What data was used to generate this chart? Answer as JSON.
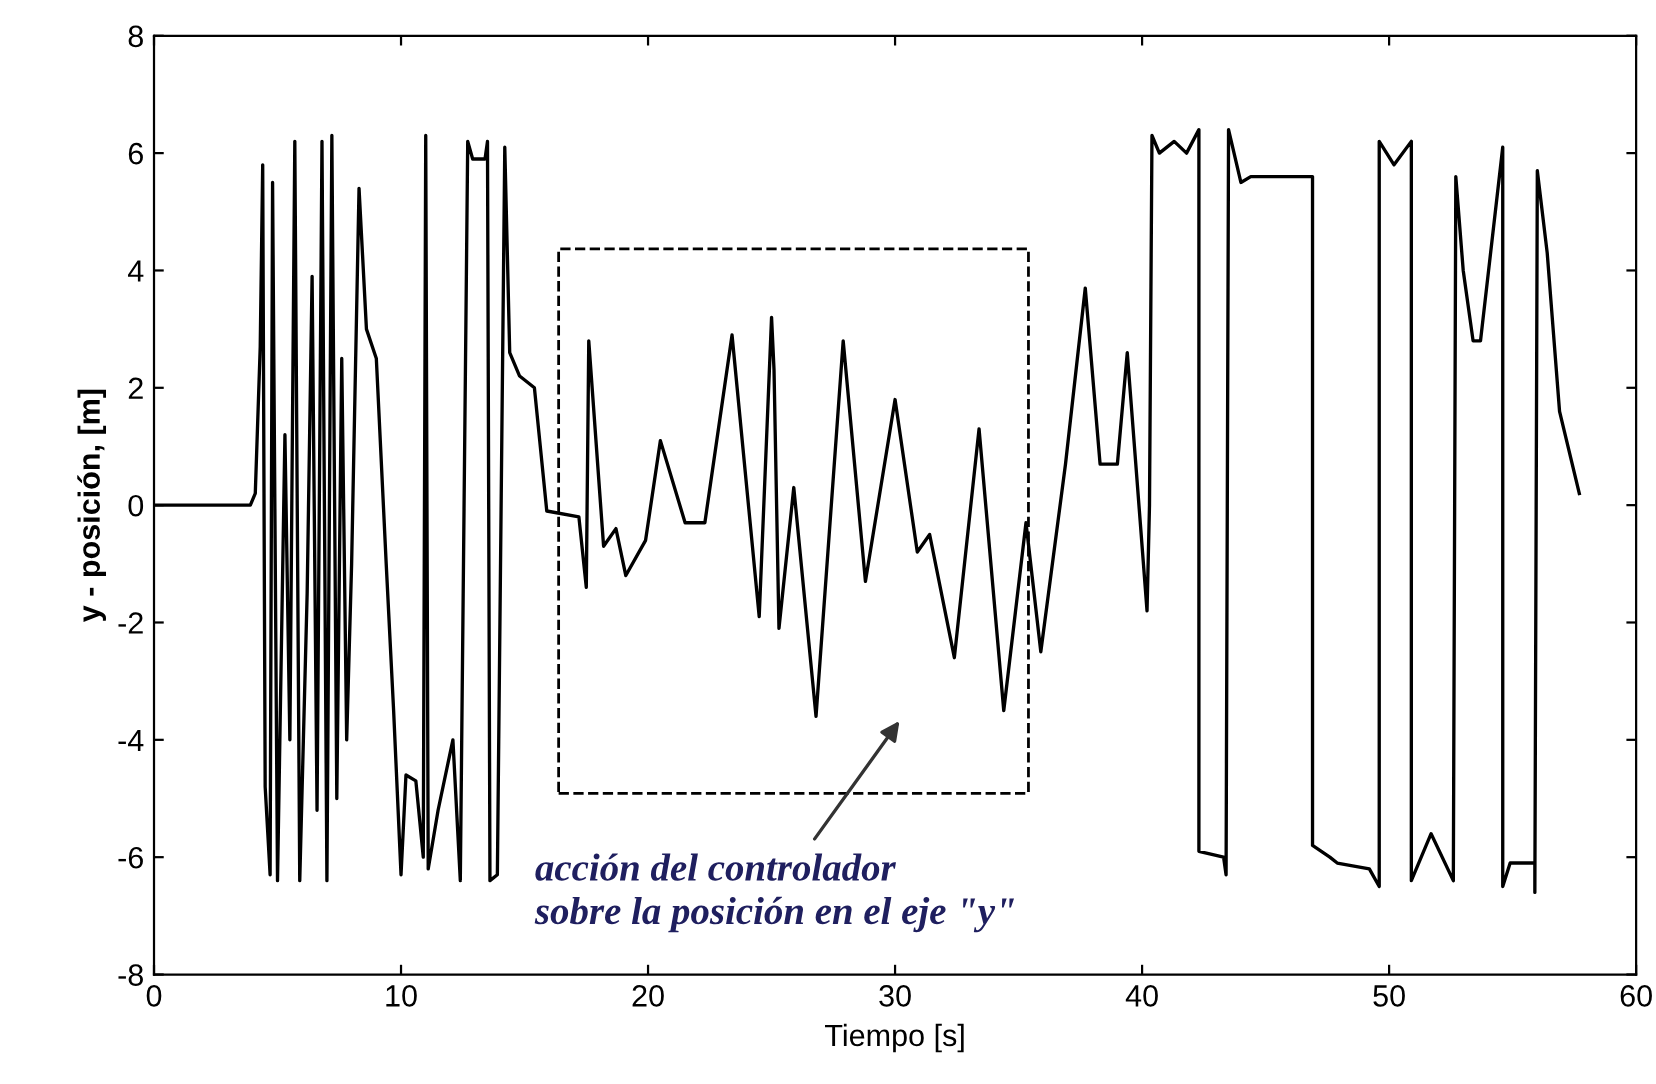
{
  "chart_data": {
    "type": "line",
    "xlabel": "Tiempo [s]",
    "ylabel": "y - posición, [m]",
    "xlim": [
      0,
      60
    ],
    "ylim": [
      -8,
      8
    ],
    "xticks": [
      0,
      10,
      20,
      30,
      40,
      50,
      60
    ],
    "yticks": [
      -8,
      -6,
      -4,
      -2,
      0,
      2,
      4,
      6,
      8
    ],
    "grid": false,
    "legend": false,
    "marker": "none",
    "line_style": "solid",
    "series": [
      {
        "color": "#000000",
        "x": [
          0,
          3.9,
          4.1,
          4.3,
          4.4,
          4.5,
          4.7,
          4.8,
          5.0,
          5.3,
          5.5,
          5.7,
          5.9,
          6.2,
          6.4,
          6.6,
          6.8,
          7.0,
          7.2,
          7.4,
          7.6,
          7.8,
          8.0,
          8.3,
          8.6,
          9.0,
          9.4,
          9.7,
          10.0,
          10.2,
          10.6,
          10.9,
          11.0,
          11.1,
          11.5,
          12.1,
          12.4,
          12.7,
          12.9,
          13.4,
          13.5,
          13.6,
          13.9,
          14.2,
          14.4,
          14.8,
          15.4,
          15.9,
          17.2,
          17.5,
          17.6,
          18.2,
          18.7,
          19.1,
          19.9,
          20.5,
          21.5,
          22.3,
          23.4,
          24.5,
          25.0,
          25.1,
          25.3,
          25.9,
          26.8,
          27.9,
          28.8,
          30.0,
          30.9,
          31.4,
          32.4,
          33.4,
          34.4,
          35.3,
          35.9,
          36.9,
          37.7,
          38.3,
          39.0,
          39.4,
          40.2,
          40.3,
          40.4,
          40.7,
          41.3,
          41.8,
          42.3,
          42.3,
          43.3,
          43.4,
          43.5,
          44.0,
          44.4,
          46.9,
          46.9,
          47.6,
          47.9,
          49.2,
          49.6,
          49.6,
          50.2,
          50.9,
          50.9,
          51.7,
          52.6,
          52.7,
          53.0,
          53.4,
          53.7,
          54.6,
          54.6,
          54.9,
          55.9,
          55.9,
          56.0,
          56.4,
          56.9,
          57.7
        ],
        "values": [
          0,
          0,
          0.2,
          2.7,
          5.8,
          -4.8,
          -6.3,
          5.5,
          -6.4,
          1.2,
          -4,
          6.2,
          -6.4,
          -1.5,
          3.9,
          -5.2,
          6.2,
          -6.4,
          6.3,
          -5,
          2.5,
          -4,
          -1,
          5.4,
          3.0,
          2.5,
          -1,
          -3.5,
          -6.3,
          -4.6,
          -4.7,
          -6.0,
          6.3,
          -6.2,
          -5.2,
          -4.0,
          -6.4,
          6.2,
          5.9,
          5.9,
          6.2,
          -6.4,
          -6.3,
          6.1,
          2.6,
          2.2,
          2.0,
          -0.1,
          -0.2,
          -1.4,
          2.8,
          -0.7,
          -0.4,
          -1.2,
          -0.6,
          1.1,
          -0.3,
          -0.3,
          2.9,
          -1.9,
          3.2,
          2.3,
          -2.1,
          0.3,
          -3.6,
          2.8,
          -1.3,
          1.8,
          -0.8,
          -0.5,
          -2.6,
          1.3,
          -3.5,
          -0.3,
          -2.5,
          0.7,
          3.7,
          0.7,
          0.7,
          2.6,
          -1.8,
          0,
          6.3,
          6.0,
          6.2,
          6.0,
          6.4,
          -5.9,
          -6.0,
          -6.3,
          6.4,
          5.5,
          5.6,
          5.6,
          -5.8,
          -6.0,
          -6.1,
          -6.2,
          -6.5,
          6.2,
          5.8,
          6.2,
          -6.4,
          -5.6,
          -6.4,
          5.6,
          4.0,
          2.8,
          2.8,
          6.1,
          -6.5,
          -6.1,
          -6.1,
          -6.6,
          5.7,
          4.3,
          1.6,
          0.2
        ]
      }
    ],
    "annotations": [
      "acción del controlador\nsobre la posición en el eje \"y\""
    ]
  }
}
